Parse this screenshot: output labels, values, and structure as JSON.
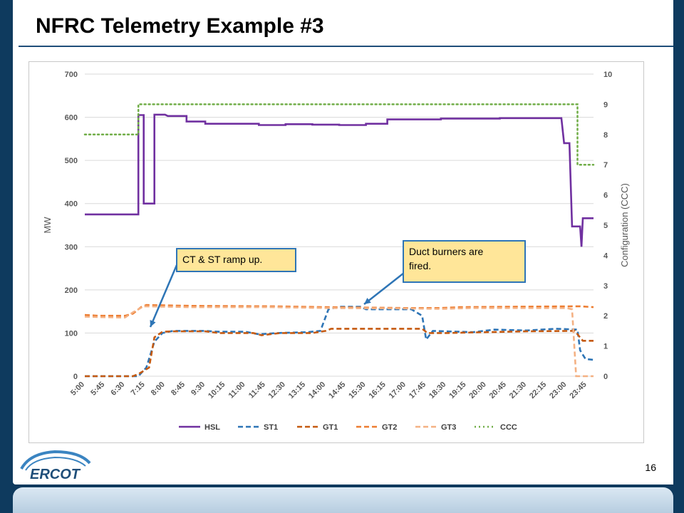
{
  "slide": {
    "title": "NFRC Telemetry Example #3",
    "page_number": "16",
    "logo_text": "ERCOT"
  },
  "annotations": [
    {
      "text": "CT & ST ramp up."
    },
    {
      "text": "Duct burners are fired."
    }
  ],
  "colors": {
    "HSL": "#7030a0",
    "ST1": "#2e75b6",
    "GT1": "#c55a11",
    "GT2": "#ed7d31",
    "GT3": "#f4b183",
    "CCC": "#70ad47",
    "callout_fill": "#ffe699",
    "callout_border": "#2e75b6"
  },
  "chart_data": {
    "type": "line",
    "ylabel": "MW",
    "y2label": "Configuration (CCC)",
    "ylim": [
      0,
      700
    ],
    "y2lim": [
      0,
      10
    ],
    "yticks": [
      "0",
      "100",
      "200",
      "300",
      "400",
      "500",
      "600",
      "700"
    ],
    "y2ticks": [
      "0",
      "1",
      "2",
      "3",
      "4",
      "5",
      "6",
      "7",
      "8",
      "9",
      "10"
    ],
    "xticks": [
      "5:00",
      "5:45",
      "6:30",
      "7:15",
      "8:00",
      "8:45",
      "9:30",
      "10:15",
      "11:00",
      "11:45",
      "12:30",
      "13:15",
      "14:00",
      "14:45",
      "15:30",
      "16:15",
      "17:00",
      "17:45",
      "18:30",
      "19:15",
      "20:00",
      "20:45",
      "21:30",
      "22:15",
      "23:00",
      "23:45"
    ],
    "xrange_hours": [
      5.0,
      24.0
    ],
    "legend_position": "bottom",
    "grid": "horizontal",
    "series": [
      {
        "name": "HSL",
        "axis": "left",
        "style": "solid",
        "points": [
          [
            5.0,
            375
          ],
          [
            7.0,
            375
          ],
          [
            7.0,
            605
          ],
          [
            7.2,
            605
          ],
          [
            7.2,
            400
          ],
          [
            7.6,
            400
          ],
          [
            7.6,
            606
          ],
          [
            8.0,
            606
          ],
          [
            8.1,
            603
          ],
          [
            8.8,
            603
          ],
          [
            8.8,
            590
          ],
          [
            9.5,
            590
          ],
          [
            9.5,
            585
          ],
          [
            11.5,
            585
          ],
          [
            11.5,
            582
          ],
          [
            12.5,
            582
          ],
          [
            12.5,
            584
          ],
          [
            13.5,
            584
          ],
          [
            13.5,
            583
          ],
          [
            14.5,
            583
          ],
          [
            14.5,
            582
          ],
          [
            15.5,
            582
          ],
          [
            15.5,
            585
          ],
          [
            16.3,
            585
          ],
          [
            16.3,
            595
          ],
          [
            18.3,
            595
          ],
          [
            18.3,
            597
          ],
          [
            20.5,
            597
          ],
          [
            20.5,
            598
          ],
          [
            22.8,
            598
          ],
          [
            22.9,
            540
          ],
          [
            23.1,
            540
          ],
          [
            23.2,
            347
          ],
          [
            23.5,
            347
          ],
          [
            23.55,
            300
          ],
          [
            23.6,
            366
          ],
          [
            24.0,
            366
          ]
        ]
      },
      {
        "name": "ST1",
        "axis": "left",
        "style": "dash",
        "points": [
          [
            5.0,
            0
          ],
          [
            6.7,
            0
          ],
          [
            7.0,
            0
          ],
          [
            7.3,
            20
          ],
          [
            7.6,
            80
          ],
          [
            7.9,
            100
          ],
          [
            8.3,
            105
          ],
          [
            9.5,
            105
          ],
          [
            10.0,
            103
          ],
          [
            11.0,
            103
          ],
          [
            11.5,
            97
          ],
          [
            12.2,
            100
          ],
          [
            13.3,
            102
          ],
          [
            13.8,
            105
          ],
          [
            14.1,
            155
          ],
          [
            14.5,
            161
          ],
          [
            15.3,
            161
          ],
          [
            15.5,
            155
          ],
          [
            16.4,
            155
          ],
          [
            17.2,
            155
          ],
          [
            17.6,
            140
          ],
          [
            17.75,
            85
          ],
          [
            18.0,
            105
          ],
          [
            19.5,
            102
          ],
          [
            20.3,
            108
          ],
          [
            21.5,
            106
          ],
          [
            22.6,
            110
          ],
          [
            23.4,
            108
          ],
          [
            23.5,
            60
          ],
          [
            23.7,
            40
          ],
          [
            24.0,
            38
          ]
        ]
      },
      {
        "name": "GT1",
        "axis": "left",
        "style": "dash",
        "points": [
          [
            5.0,
            0
          ],
          [
            6.8,
            0
          ],
          [
            7.0,
            5
          ],
          [
            7.4,
            20
          ],
          [
            7.6,
            90
          ],
          [
            7.9,
            103
          ],
          [
            8.3,
            104
          ],
          [
            9.5,
            104
          ],
          [
            10.0,
            100
          ],
          [
            11.3,
            100
          ],
          [
            11.6,
            95
          ],
          [
            12.3,
            100
          ],
          [
            13.5,
            100
          ],
          [
            14.0,
            105
          ],
          [
            14.2,
            110
          ],
          [
            17.3,
            110
          ],
          [
            17.6,
            110
          ],
          [
            17.8,
            100
          ],
          [
            18.5,
            100
          ],
          [
            20.0,
            102
          ],
          [
            21.5,
            104
          ],
          [
            23.3,
            105
          ],
          [
            23.6,
            82
          ],
          [
            24.0,
            82
          ]
        ]
      },
      {
        "name": "GT2",
        "axis": "left",
        "style": "dash",
        "points": [
          [
            5.0,
            142
          ],
          [
            5.5,
            140
          ],
          [
            6.5,
            140
          ],
          [
            6.8,
            145
          ],
          [
            7.1,
            160
          ],
          [
            7.3,
            165
          ],
          [
            9.0,
            163
          ],
          [
            12.0,
            162
          ],
          [
            14.0,
            160
          ],
          [
            17.0,
            158
          ],
          [
            18.3,
            158
          ],
          [
            19.0,
            160
          ],
          [
            21.0,
            161
          ],
          [
            23.5,
            162
          ],
          [
            24.0,
            160
          ]
        ]
      },
      {
        "name": "GT3",
        "axis": "left",
        "style": "dash",
        "points": [
          [
            5.0,
            138
          ],
          [
            5.5,
            137
          ],
          [
            6.5,
            136
          ],
          [
            6.8,
            148
          ],
          [
            7.2,
            162
          ],
          [
            9.0,
            160
          ],
          [
            12.0,
            160
          ],
          [
            14.0,
            158
          ],
          [
            17.0,
            157
          ],
          [
            18.3,
            156
          ],
          [
            19.5,
            158
          ],
          [
            21.0,
            158
          ],
          [
            23.0,
            158
          ],
          [
            23.2,
            155
          ],
          [
            23.35,
            0
          ],
          [
            24.0,
            0
          ]
        ]
      },
      {
        "name": "CCC",
        "axis": "right",
        "style": "dot",
        "points": [
          [
            5.0,
            8
          ],
          [
            6.7,
            8
          ],
          [
            7.0,
            8
          ],
          [
            7.0,
            9
          ],
          [
            23.4,
            9
          ],
          [
            23.4,
            7
          ],
          [
            24.0,
            7
          ]
        ]
      }
    ]
  }
}
